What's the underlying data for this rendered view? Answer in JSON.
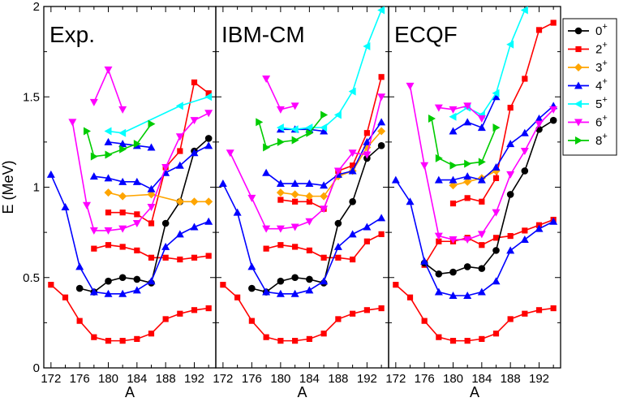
{
  "chart_data": {
    "type": "line",
    "ylabel": "E (MeV)",
    "xlabel": "A",
    "ylim": [
      0,
      2
    ],
    "xlim": [
      171,
      195
    ],
    "x_ticks": [
      172,
      176,
      180,
      184,
      188,
      192
    ],
    "y_ticks": [
      0,
      0.5,
      1,
      1.5,
      2
    ],
    "y_tick_labels": [
      "0",
      "0.5",
      "1",
      "1.5",
      "2"
    ],
    "legend_position": "top-right",
    "legend": [
      {
        "label": "0",
        "sup": "+",
        "color": "#000000",
        "marker": "circle"
      },
      {
        "label": "2",
        "sup": "+",
        "color": "#ff0000",
        "marker": "square"
      },
      {
        "label": "3",
        "sup": "+",
        "color": "#ffa500",
        "marker": "diamond"
      },
      {
        "label": "4",
        "sup": "+",
        "color": "#0000ff",
        "marker": "triangle-up"
      },
      {
        "label": "5",
        "sup": "+",
        "color": "#00ffff",
        "marker": "triangle-left"
      },
      {
        "label": "6",
        "sup": "+",
        "color": "#ff00ff",
        "marker": "triangle-down"
      },
      {
        "label": "8",
        "sup": "+",
        "color": "#00cc00",
        "marker": "triangle-right"
      }
    ],
    "panels": [
      {
        "title": "Exp.",
        "series": [
          {
            "legend_index": 1,
            "x": [
              172,
              174,
              176,
              178,
              180,
              182,
              184,
              186,
              188,
              190,
              192,
              194
            ],
            "y": [
              0.46,
              0.39,
              0.26,
              0.17,
              0.15,
              0.15,
              0.16,
              0.19,
              0.27,
              0.3,
              0.32,
              0.33
            ]
          },
          {
            "legend_index": 1,
            "x": [
              178,
              180,
              182,
              184,
              186,
              188,
              190,
              192,
              194
            ],
            "y": [
              0.66,
              0.68,
              0.67,
              0.65,
              0.61,
              0.61,
              0.6,
              0.61,
              0.62
            ]
          },
          {
            "legend_index": 1,
            "x": [
              180,
              182,
              184,
              186,
              188,
              190,
              192,
              194
            ],
            "y": [
              0.86,
              0.86,
              0.85,
              0.8,
              1.11,
              1.2,
              1.58,
              1.52
            ]
          },
          {
            "legend_index": 0,
            "x": [
              176,
              178,
              180,
              182,
              184,
              186,
              188,
              190,
              192,
              194
            ],
            "y": [
              0.44,
              0.42,
              0.48,
              0.5,
              0.49,
              0.47,
              0.8,
              0.92,
              1.2,
              1.27
            ]
          },
          {
            "legend_index": 2,
            "x": [
              180,
              182,
              186,
              190,
              192,
              194
            ],
            "y": [
              0.97,
              0.95,
              0.96,
              0.92,
              0.92,
              0.92
            ]
          },
          {
            "legend_index": 3,
            "x": [
              172,
              174,
              176,
              178,
              180,
              182,
              184,
              186,
              188,
              190,
              192,
              194
            ],
            "y": [
              1.07,
              0.89,
              0.56,
              0.42,
              0.41,
              0.41,
              0.43,
              0.48,
              0.67,
              0.74,
              0.78,
              0.81
            ]
          },
          {
            "legend_index": 3,
            "x": [
              178,
              180,
              182,
              184,
              186,
              188,
              190,
              192,
              194
            ],
            "y": [
              1.06,
              1.05,
              1.03,
              1.03,
              0.99,
              1.08,
              1.12,
              1.19,
              1.23
            ]
          },
          {
            "legend_index": 3,
            "x": [
              180,
              182,
              184,
              186
            ],
            "y": [
              1.25,
              1.24,
              1.23,
              1.22
            ]
          },
          {
            "legend_index": 4,
            "x": [
              180,
              182,
              190,
              194
            ],
            "y": [
              1.31,
              1.3,
              1.45,
              1.5
            ]
          },
          {
            "legend_index": 5,
            "x": [
              175,
              177,
              178,
              180,
              182,
              184,
              186,
              188,
              190,
              192,
              194
            ],
            "y": [
              1.36,
              0.9,
              0.76,
              0.76,
              0.77,
              0.8,
              0.89,
              1.11,
              1.28,
              1.37,
              1.41
            ]
          },
          {
            "legend_index": 5,
            "x": [
              178,
              180,
              182
            ],
            "y": [
              1.47,
              1.65,
              1.43
            ]
          },
          {
            "legend_index": 6,
            "x": [
              177,
              178,
              180,
              182,
              184,
              186
            ],
            "y": [
              1.31,
              1.17,
              1.18,
              1.21,
              1.24,
              1.35
            ]
          }
        ]
      },
      {
        "title": "IBM-CM",
        "series": [
          {
            "legend_index": 1,
            "x": [
              172,
              174,
              176,
              178,
              180,
              182,
              184,
              186,
              188,
              190,
              192,
              194
            ],
            "y": [
              0.46,
              0.39,
              0.26,
              0.17,
              0.15,
              0.15,
              0.16,
              0.19,
              0.27,
              0.3,
              0.32,
              0.33
            ]
          },
          {
            "legend_index": 1,
            "x": [
              178,
              180,
              182,
              184,
              186,
              188,
              190,
              192,
              194
            ],
            "y": [
              0.66,
              0.68,
              0.67,
              0.65,
              0.61,
              0.61,
              0.6,
              0.7,
              0.74
            ]
          },
          {
            "legend_index": 1,
            "x": [
              180,
              182,
              184,
              186,
              188,
              190,
              192,
              194
            ],
            "y": [
              0.93,
              0.92,
              0.92,
              0.88,
              1.09,
              1.12,
              1.3,
              1.61
            ]
          },
          {
            "legend_index": 0,
            "x": [
              176,
              178,
              180,
              182,
              184,
              186,
              188,
              190,
              192,
              194
            ],
            "y": [
              0.44,
              0.42,
              0.48,
              0.5,
              0.49,
              0.47,
              0.8,
              0.92,
              1.16,
              1.23
            ]
          },
          {
            "legend_index": 2,
            "x": [
              180,
              182,
              184,
              186,
              188,
              190,
              192,
              194
            ],
            "y": [
              0.97,
              0.96,
              0.95,
              0.95,
              1.06,
              1.09,
              1.22,
              1.31
            ]
          },
          {
            "legend_index": 3,
            "x": [
              172,
              174,
              176,
              178,
              180,
              182,
              184,
              186,
              188,
              190,
              192,
              194
            ],
            "y": [
              1.02,
              0.86,
              0.56,
              0.42,
              0.41,
              0.41,
              0.43,
              0.48,
              0.67,
              0.74,
              0.78,
              0.83
            ]
          },
          {
            "legend_index": 3,
            "x": [
              178,
              180,
              182,
              184,
              186,
              188,
              190,
              192,
              194
            ],
            "y": [
              1.08,
              1.02,
              1.02,
              1.02,
              1.01,
              1.07,
              1.09,
              1.25,
              1.36
            ]
          },
          {
            "legend_index": 3,
            "x": [
              180,
              182,
              184,
              186
            ],
            "y": [
              1.32,
              1.32,
              1.32,
              1.31
            ]
          },
          {
            "legend_index": 4,
            "x": [
              180,
              182,
              184,
              186,
              188,
              190,
              192,
              194
            ],
            "y": [
              1.33,
              1.32,
              1.33,
              1.33,
              1.4,
              1.53,
              1.78,
              1.98
            ]
          },
          {
            "legend_index": 5,
            "x": [
              173,
              176,
              178,
              180,
              182,
              184,
              186,
              188,
              190,
              192,
              194
            ],
            "y": [
              1.19,
              0.94,
              0.77,
              0.77,
              0.78,
              0.81,
              0.88,
              1.09,
              1.19,
              1.18,
              1.5
            ]
          },
          {
            "legend_index": 5,
            "x": [
              178,
              180,
              182
            ],
            "y": [
              1.6,
              1.43,
              1.45
            ]
          },
          {
            "legend_index": 6,
            "x": [
              177,
              178,
              180,
              182,
              184,
              186
            ],
            "y": [
              1.36,
              1.22,
              1.25,
              1.26,
              1.3,
              1.4
            ]
          }
        ]
      },
      {
        "title": "ECQF",
        "series": [
          {
            "legend_index": 1,
            "x": [
              172,
              174,
              176,
              178,
              180,
              182,
              184,
              186,
              188,
              190,
              192,
              194
            ],
            "y": [
              0.46,
              0.39,
              0.26,
              0.17,
              0.15,
              0.15,
              0.16,
              0.19,
              0.27,
              0.3,
              0.32,
              0.33
            ]
          },
          {
            "legend_index": 1,
            "x": [
              176,
              178,
              180,
              182,
              184,
              186,
              188,
              190,
              192,
              194
            ],
            "y": [
              0.57,
              0.7,
              0.7,
              0.72,
              0.68,
              0.72,
              0.73,
              0.76,
              0.79,
              0.82
            ]
          },
          {
            "legend_index": 1,
            "x": [
              180,
              182,
              184,
              186,
              188,
              190,
              192,
              194
            ],
            "y": [
              0.91,
              0.94,
              0.92,
              1.05,
              1.44,
              1.6,
              1.87,
              1.91
            ]
          },
          {
            "legend_index": 0,
            "x": [
              176,
              178,
              180,
              182,
              184,
              186,
              188,
              190,
              192,
              194
            ],
            "y": [
              0.58,
              0.52,
              0.53,
              0.56,
              0.55,
              0.65,
              0.96,
              1.09,
              1.32,
              1.37
            ]
          },
          {
            "legend_index": 2,
            "x": [
              180,
              182,
              184,
              186
            ],
            "y": [
              1.01,
              1.03,
              1.05,
              1.09
            ]
          },
          {
            "legend_index": 3,
            "x": [
              172,
              174,
              176,
              178,
              180,
              182,
              184,
              186,
              188,
              190,
              192,
              194
            ],
            "y": [
              1.04,
              0.92,
              0.59,
              0.42,
              0.4,
              0.4,
              0.42,
              0.48,
              0.65,
              0.71,
              0.77,
              0.81
            ]
          },
          {
            "legend_index": 3,
            "x": [
              178,
              180,
              182,
              184,
              186,
              188,
              190,
              192,
              194
            ],
            "y": [
              1.04,
              1.04,
              1.06,
              1.04,
              1.11,
              1.24,
              1.3,
              1.38,
              1.45
            ]
          },
          {
            "legend_index": 3,
            "x": [
              180,
              182,
              184,
              186
            ],
            "y": [
              1.31,
              1.36,
              1.33,
              1.5
            ]
          },
          {
            "legend_index": 4,
            "x": [
              180,
              182,
              184,
              186,
              188,
              190
            ],
            "y": [
              1.39,
              1.44,
              1.4,
              1.52,
              1.79,
              1.98
            ]
          },
          {
            "legend_index": 5,
            "x": [
              174,
              176,
              178,
              180,
              182,
              184,
              186,
              188,
              190,
              192,
              194
            ],
            "y": [
              1.56,
              1.12,
              0.73,
              0.71,
              0.71,
              0.74,
              0.86,
              1.07,
              1.2,
              1.35,
              1.43
            ]
          },
          {
            "legend_index": 5,
            "x": [
              178,
              180,
              182,
              184
            ],
            "y": [
              1.44,
              1.43,
              1.45,
              1.38
            ]
          },
          {
            "legend_index": 6,
            "x": [
              177,
              178,
              180,
              182,
              184,
              186
            ],
            "y": [
              1.38,
              1.16,
              1.12,
              1.13,
              1.14,
              1.33
            ]
          }
        ]
      }
    ]
  }
}
